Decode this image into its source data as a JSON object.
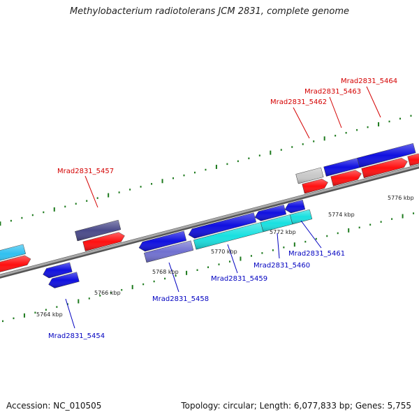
{
  "title": "Methylobacterium radiotolerans JCM 2831, complete genome",
  "footer": {
    "accession": "Accession: NC_010505",
    "summary": "Topology: circular; Length: 6,077,833 bp; Genes: 5,755"
  },
  "colors": {
    "backbone": "#8a8a8a",
    "tick": "#1d7a1d",
    "forward_label": "#d40000",
    "reverse_label": "#0000c0",
    "gene_blue": "#1010e0",
    "gene_red": "#ff1010",
    "gene_cyan": "#19e0e0",
    "gene_lightblue": "#30c0f0",
    "gene_navy": "#4a4a8a",
    "gene_slate": "#7070d0",
    "gene_grey": "#c8c8c8"
  },
  "scale_labels": [
    "5764 kbp",
    "5766 kbp",
    "5768 kbp",
    "5770 kbp",
    "5772 kbp",
    "5774 kbp",
    "5776 kbp"
  ],
  "forward_gene_labels": [
    "Mrad2831_5457",
    "Mrad2831_5462",
    "Mrad2831_5463",
    "Mrad2831_5464"
  ],
  "reverse_gene_labels": [
    "Mrad2831_5454",
    "Mrad2831_5458",
    "Mrad2831_5459",
    "Mrad2831_5460",
    "Mrad2831_5461"
  ]
}
